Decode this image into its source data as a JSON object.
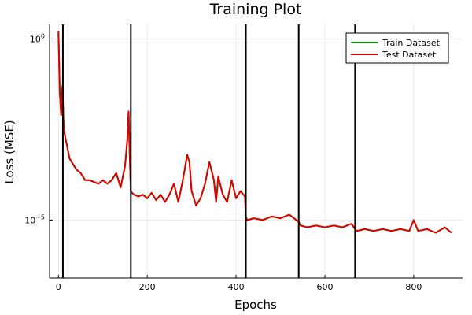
{
  "chart_data": {
    "type": "line",
    "title": "Training Plot",
    "xlabel": "Epochs",
    "ylabel": "Loss (MSE)",
    "xlim": [
      -20,
      910
    ],
    "ylim_log10": [
      -6.6,
      0.4
    ],
    "y_scale": "log",
    "grid": true,
    "legend_position": "top-right",
    "x_ticks": [
      0,
      200,
      400,
      600,
      800
    ],
    "x_tick_labels": [
      "0",
      "200",
      "400",
      "600",
      "800"
    ],
    "y_ticks_log10": [
      0,
      -5
    ],
    "y_tick_labels": [
      {
        "base": "10",
        "exp": "0"
      },
      {
        "base": "10",
        "exp": "−5"
      }
    ],
    "vlines": [
      10,
      163,
      422,
      541,
      668
    ],
    "vline_color": "#000000",
    "series": [
      {
        "name": "Train Dataset",
        "color": "#009a00",
        "x": [
          0,
          3,
          6,
          9,
          12,
          15,
          20,
          25,
          30,
          40,
          50,
          60,
          70,
          80,
          90,
          100,
          110,
          120,
          130,
          140,
          150,
          155,
          158,
          160,
          163,
          166,
          170,
          180,
          190,
          200,
          210,
          220,
          230,
          240,
          250,
          260,
          270,
          280,
          290,
          295,
          300,
          310,
          320,
          330,
          340,
          350,
          355,
          360,
          370,
          380,
          390,
          400,
          410,
          420,
          422,
          425,
          440,
          460,
          480,
          500,
          520,
          541,
          545,
          560,
          580,
          600,
          620,
          640,
          660,
          668,
          672,
          690,
          710,
          730,
          750,
          770,
          790,
          800,
          810,
          830,
          850,
          870,
          885
        ],
        "y_log10": [
          0.2,
          -1.5,
          -2.1,
          -1.3,
          -2.5,
          -2.7,
          -3.0,
          -3.3,
          -3.4,
          -3.6,
          -3.7,
          -3.9,
          -3.9,
          -3.95,
          -4.0,
          -3.9,
          -4.0,
          -3.9,
          -3.7,
          -4.1,
          -3.5,
          -2.8,
          -2.0,
          -3.0,
          -4.2,
          -4.25,
          -4.3,
          -4.35,
          -4.3,
          -4.4,
          -4.25,
          -4.45,
          -4.3,
          -4.5,
          -4.3,
          -4.0,
          -4.5,
          -3.9,
          -3.2,
          -3.4,
          -4.2,
          -4.6,
          -4.4,
          -4.0,
          -3.4,
          -3.9,
          -4.5,
          -3.8,
          -4.3,
          -4.5,
          -3.9,
          -4.4,
          -4.2,
          -4.35,
          -4.9,
          -5.0,
          -4.95,
          -5.0,
          -4.9,
          -4.95,
          -4.85,
          -5.05,
          -5.15,
          -5.2,
          -5.15,
          -5.2,
          -5.15,
          -5.2,
          -5.1,
          -5.25,
          -5.3,
          -5.25,
          -5.3,
          -5.25,
          -5.3,
          -5.25,
          -5.3,
          -5.0,
          -5.3,
          -5.25,
          -5.35,
          -5.2,
          -5.35
        ]
      },
      {
        "name": "Test Dataset",
        "color": "#e00000",
        "x": [
          0,
          3,
          6,
          9,
          12,
          15,
          20,
          25,
          30,
          40,
          50,
          60,
          70,
          80,
          90,
          100,
          110,
          120,
          130,
          140,
          150,
          155,
          158,
          160,
          163,
          166,
          170,
          180,
          190,
          200,
          210,
          220,
          230,
          240,
          250,
          260,
          270,
          280,
          290,
          295,
          300,
          310,
          320,
          330,
          340,
          350,
          355,
          360,
          370,
          380,
          390,
          400,
          410,
          420,
          422,
          425,
          440,
          460,
          480,
          500,
          520,
          541,
          545,
          560,
          580,
          600,
          620,
          640,
          660,
          668,
          672,
          690,
          710,
          730,
          750,
          770,
          790,
          800,
          810,
          830,
          850,
          870,
          885
        ],
        "y_log10": [
          0.2,
          -1.5,
          -2.1,
          -1.3,
          -2.5,
          -2.7,
          -3.0,
          -3.3,
          -3.4,
          -3.6,
          -3.7,
          -3.9,
          -3.9,
          -3.95,
          -4.0,
          -3.9,
          -4.0,
          -3.9,
          -3.7,
          -4.1,
          -3.5,
          -2.8,
          -2.0,
          -3.0,
          -4.2,
          -4.25,
          -4.3,
          -4.35,
          -4.3,
          -4.4,
          -4.25,
          -4.45,
          -4.3,
          -4.5,
          -4.3,
          -4.0,
          -4.5,
          -3.9,
          -3.2,
          -3.4,
          -4.2,
          -4.6,
          -4.4,
          -4.0,
          -3.4,
          -3.9,
          -4.5,
          -3.8,
          -4.3,
          -4.5,
          -3.9,
          -4.4,
          -4.2,
          -4.35,
          -4.9,
          -5.0,
          -4.95,
          -5.0,
          -4.9,
          -4.95,
          -4.85,
          -5.05,
          -5.15,
          -5.2,
          -5.15,
          -5.2,
          -5.15,
          -5.2,
          -5.1,
          -5.25,
          -5.3,
          -5.25,
          -5.3,
          -5.25,
          -5.3,
          -5.25,
          -5.3,
          -5.0,
          -5.3,
          -5.25,
          -5.35,
          -5.2,
          -5.35
        ]
      }
    ]
  }
}
